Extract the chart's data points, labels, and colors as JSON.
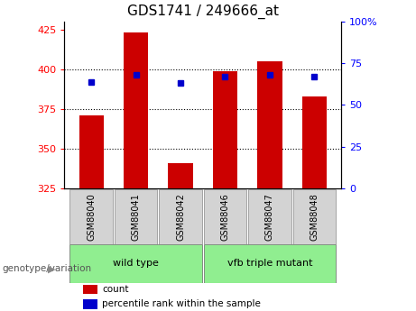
{
  "title": "GDS1741 / 249666_at",
  "categories": [
    "GSM88040",
    "GSM88041",
    "GSM88042",
    "GSM88046",
    "GSM88047",
    "GSM88048"
  ],
  "bar_values": [
    371,
    423,
    341,
    399,
    405,
    383
  ],
  "bar_base": 325,
  "percentile_values": [
    64,
    68,
    63,
    67,
    68,
    67
  ],
  "bar_color": "#cc0000",
  "dot_color": "#0000cc",
  "ylim_left": [
    325,
    430
  ],
  "ylim_right": [
    0,
    100
  ],
  "yticks_left": [
    325,
    350,
    375,
    400,
    425
  ],
  "yticks_right": [
    0,
    25,
    50,
    75,
    100
  ],
  "grid_values": [
    350,
    375,
    400
  ],
  "group_labels": [
    "wild type",
    "vfb triple mutant"
  ],
  "group_ranges": [
    [
      0,
      3
    ],
    [
      3,
      6
    ]
  ],
  "group_color": "#90ee90",
  "sample_box_color": "#d3d3d3",
  "xlabel_left": "genotype/variation",
  "legend_items": [
    "count",
    "percentile rank within the sample"
  ],
  "legend_colors": [
    "#cc0000",
    "#0000cc"
  ],
  "bar_width": 0.55,
  "figure_width": 4.61,
  "figure_height": 3.45,
  "bg_color": "#ffffff"
}
